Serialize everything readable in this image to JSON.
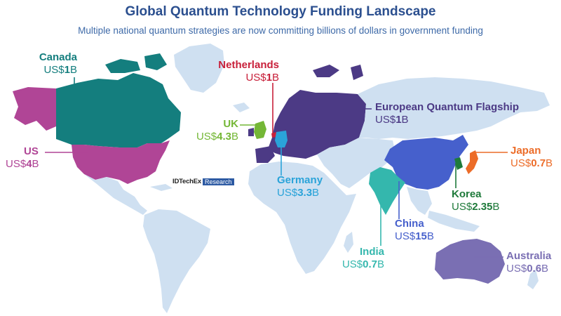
{
  "title": "Global Quantum Technology Funding Landscape",
  "subtitle": "Multiple national quantum strategies are now committing billions of dollars in government funding",
  "logo": {
    "brand": "IDTechEx",
    "tag": "Research"
  },
  "colors": {
    "land": "#cfe0f1",
    "ocean": "#ffffff",
    "canada": "#147e7e",
    "us": "#b04596",
    "netherlands": "#c8203a",
    "uk": "#74b736",
    "eu": "#4c3a85",
    "germany": "#2aa3d9",
    "japan": "#ec6c28",
    "korea": "#1e7a3a",
    "china": "#4660cc",
    "india": "#34b7ad",
    "australia": "#7a6fb3"
  },
  "regions": {
    "canada": {
      "name": "Canada",
      "prefix": "US$",
      "amount": "1",
      "suffix": "B"
    },
    "us": {
      "name": "US",
      "prefix": "US$",
      "amount": "4",
      "suffix": "B"
    },
    "netherlands": {
      "name": "Netherlands",
      "prefix": "US$",
      "amount": "1",
      "suffix": "B"
    },
    "uk": {
      "name": "UK",
      "prefix": "US$",
      "amount": "4.3",
      "suffix": "B"
    },
    "eu": {
      "name": "European Quantum Flagship",
      "prefix": "US$",
      "amount": "1",
      "suffix": "B"
    },
    "germany": {
      "name": "Germany",
      "prefix": "US$",
      "amount": "3.3",
      "suffix": "B"
    },
    "japan": {
      "name": "Japan",
      "prefix": "US$",
      "amount": "0.7",
      "suffix": "B"
    },
    "korea": {
      "name": "Korea",
      "prefix": "US$",
      "amount": "2.35",
      "suffix": "B"
    },
    "china": {
      "name": "China",
      "prefix": "US$",
      "amount": "15",
      "suffix": "B"
    },
    "india": {
      "name": "India",
      "prefix": "US$",
      "amount": "0.7",
      "suffix": "B"
    },
    "australia": {
      "name": "Australia",
      "prefix": "US$",
      "amount": "0.6",
      "suffix": "B"
    }
  }
}
